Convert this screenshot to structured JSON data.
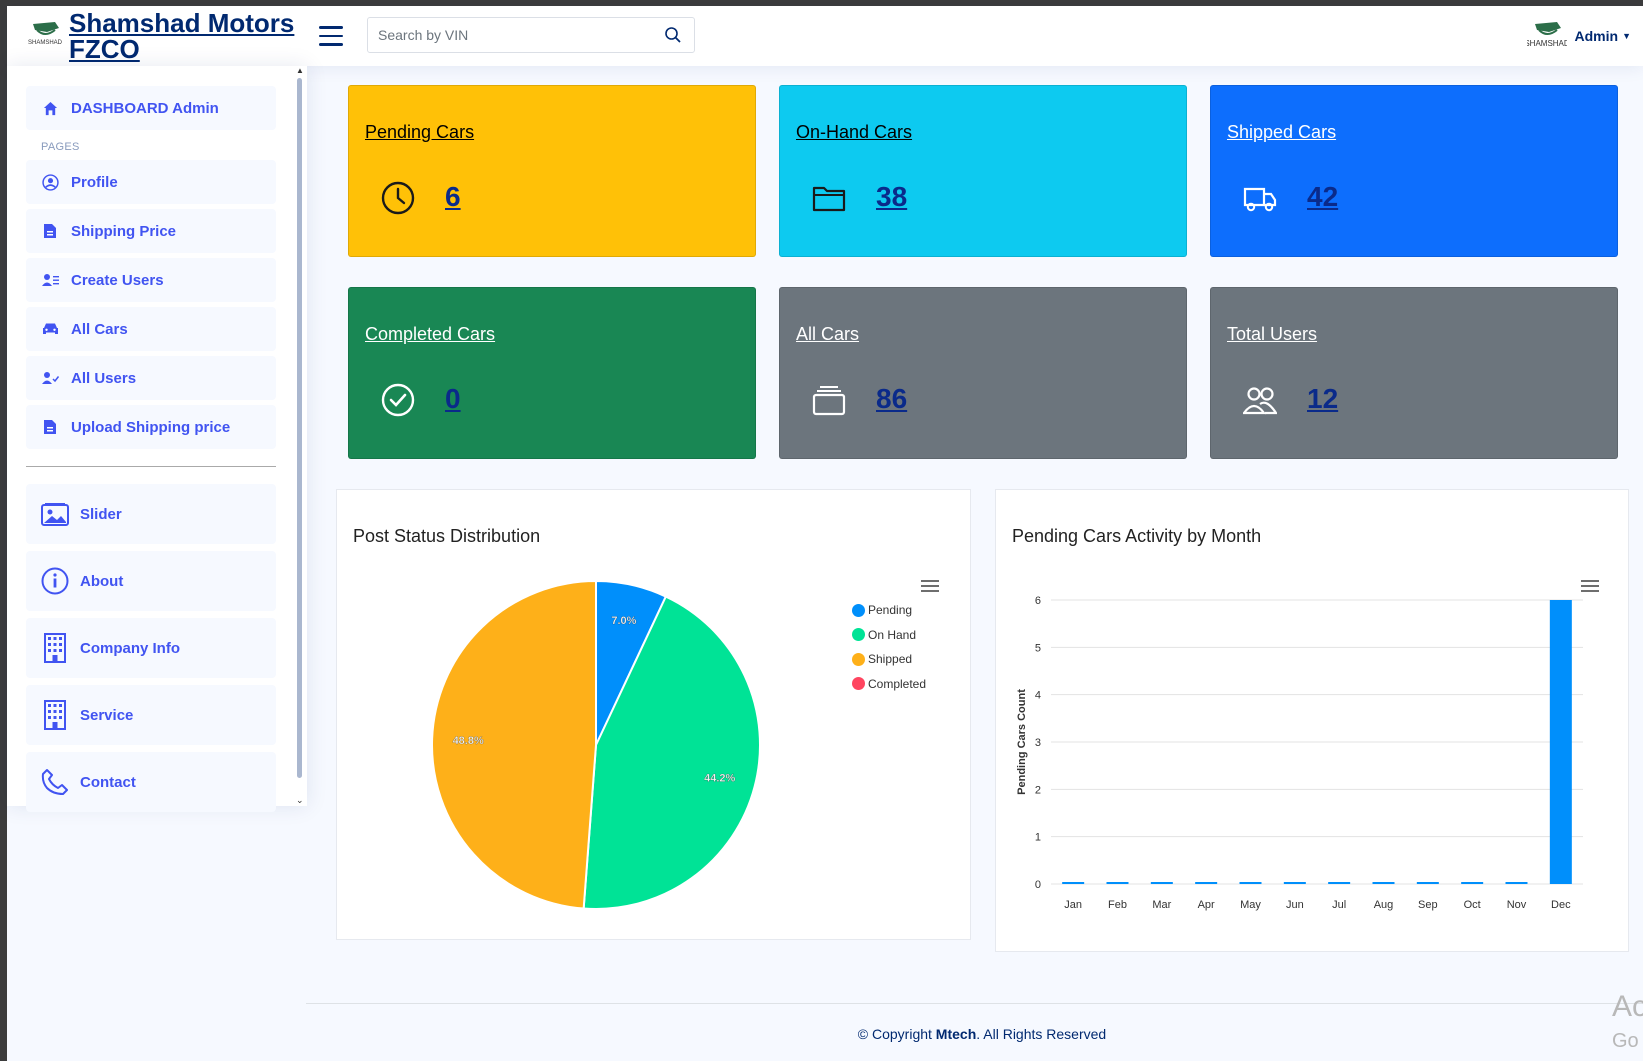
{
  "header": {
    "logo_alt_text": "SHAMSHAD",
    "brand": "Shamshad Motors FZCO",
    "search_placeholder": "Search by VIN",
    "user": "Admin",
    "profile_logo_text": "SHAMSHAD"
  },
  "sidebar": {
    "dashboard": "DASHBOARD Admin",
    "pages_heading": "PAGES",
    "items": [
      {
        "label": "Profile",
        "icon": "user-circle-icon"
      },
      {
        "label": "Shipping Price",
        "icon": "file-icon"
      },
      {
        "label": "Create Users",
        "icon": "user-list-icon"
      },
      {
        "label": "All Cars",
        "icon": "car-icon"
      },
      {
        "label": "All Users",
        "icon": "user-check-icon"
      },
      {
        "label": "Upload Shipping price",
        "icon": "file-icon"
      }
    ],
    "big_items": [
      {
        "label": "Slider",
        "icon": "image-icon"
      },
      {
        "label": "About",
        "icon": "info-icon"
      },
      {
        "label": "Company Info",
        "icon": "building-icon"
      },
      {
        "label": "Service",
        "icon": "building-icon"
      },
      {
        "label": "Contact",
        "icon": "phone-icon"
      }
    ]
  },
  "cards": [
    {
      "title": "Pending Cars",
      "value": "6",
      "bg": "#ffc107",
      "fg": "#000000",
      "icon": "clock-icon"
    },
    {
      "title": "On-Hand Cars",
      "value": "38",
      "bg": "#0dcaf0",
      "fg": "#000000",
      "icon": "folder-icon"
    },
    {
      "title": "Shipped Cars",
      "value": "42",
      "bg": "#0d6efd",
      "fg": "#ffffff",
      "icon": "truck-icon"
    },
    {
      "title": "Completed Cars",
      "value": "0",
      "bg": "#198754",
      "fg": "#ffffff",
      "icon": "check-circle-icon"
    },
    {
      "title": "All Cars",
      "value": "86",
      "bg": "#6c757d",
      "fg": "#ffffff",
      "icon": "collection-icon"
    },
    {
      "title": "Total Users",
      "value": "12",
      "bg": "#6c757d",
      "fg": "#ffffff",
      "icon": "people-icon"
    }
  ],
  "pie_panel": {
    "title": "Post Status Distribution"
  },
  "bar_panel": {
    "title": "Pending Cars Activity by Month"
  },
  "chart_data": [
    {
      "type": "pie",
      "title": "Post Status Distribution",
      "labels": [
        "Pending",
        "On Hand",
        "Shipped",
        "Completed"
      ],
      "values": [
        7.0,
        44.2,
        48.8,
        0
      ],
      "data_labels": [
        "7.0%",
        "44.2%",
        "48.8%",
        ""
      ],
      "colors": [
        "#008ffb",
        "#00e396",
        "#feb019",
        "#ff4560"
      ],
      "legend_position": "top-right"
    },
    {
      "type": "bar",
      "title": "Pending Cars Activity by Month",
      "categories": [
        "Jan",
        "Feb",
        "Mar",
        "Apr",
        "May",
        "Jun",
        "Jul",
        "Aug",
        "Sep",
        "Oct",
        "Nov",
        "Dec"
      ],
      "values": [
        0,
        0,
        0,
        0,
        0,
        0,
        0,
        0,
        0,
        0,
        0,
        6
      ],
      "ylabel": "Pending Cars Count",
      "xlabel": "",
      "ylim": [
        0,
        6
      ],
      "yticks": [
        "0",
        "1",
        "2",
        "3",
        "4",
        "5",
        "6"
      ],
      "color": "#008ffb",
      "grid": true
    }
  ],
  "footer": {
    "prefix": "© Copyright ",
    "brand": "Mtech",
    "suffix": ". All Rights Reserved"
  },
  "watermark": {
    "line1": "Ac",
    "line2": "Go"
  }
}
